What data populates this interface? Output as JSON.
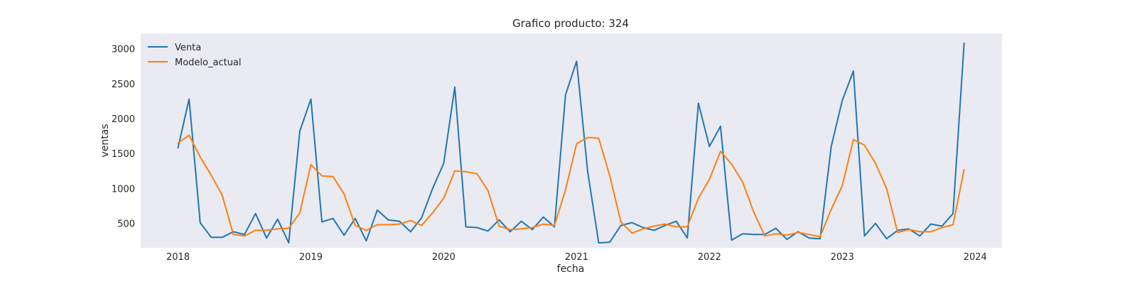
{
  "chart_data": {
    "type": "line",
    "title": "Grafico producto: 324",
    "xlabel": "fecha",
    "ylabel": "ventas",
    "x_start": "2018-01",
    "x_ticks": [
      "2018",
      "2019",
      "2020",
      "2021",
      "2022",
      "2023",
      "2024"
    ],
    "y_ticks": [
      500,
      1000,
      1500,
      2000,
      2500,
      3000
    ],
    "ylim": [
      150,
      3220
    ],
    "grid": false,
    "legend_position": "top-left",
    "background_color": "#eaeaf2",
    "series": [
      {
        "name": "Venta",
        "color": "#1f77b4",
        "values": [
          1580,
          2280,
          510,
          300,
          300,
          380,
          340,
          640,
          290,
          560,
          220,
          1820,
          2280,
          520,
          570,
          330,
          570,
          250,
          690,
          550,
          530,
          380,
          580,
          1000,
          1360,
          2450,
          450,
          440,
          390,
          550,
          380,
          530,
          410,
          590,
          450,
          2340,
          2820,
          1240,
          220,
          230,
          470,
          510,
          440,
          400,
          470,
          530,
          290,
          2220,
          1600,
          1890,
          260,
          350,
          340,
          340,
          430,
          270,
          380,
          290,
          280,
          1600,
          2260,
          2680,
          320,
          500,
          280,
          400,
          420,
          320,
          490,
          460,
          640,
          3080
        ]
      },
      {
        "name": "Modelo_actual",
        "color": "#ff7f0e",
        "values": [
          1650,
          1760,
          1450,
          1190,
          900,
          340,
          320,
          400,
          400,
          420,
          430,
          650,
          1340,
          1180,
          1170,
          920,
          470,
          400,
          480,
          480,
          490,
          540,
          470,
          650,
          860,
          1250,
          1240,
          1210,
          970,
          460,
          410,
          420,
          440,
          490,
          470,
          980,
          1640,
          1730,
          1720,
          1180,
          520,
          360,
          420,
          460,
          490,
          450,
          450,
          860,
          1130,
          1530,
          1350,
          1090,
          660,
          320,
          350,
          330,
          370,
          340,
          310,
          700,
          1040,
          1700,
          1620,
          1360,
          1000,
          370,
          410,
          380,
          380,
          440,
          480,
          1270
        ]
      }
    ]
  }
}
